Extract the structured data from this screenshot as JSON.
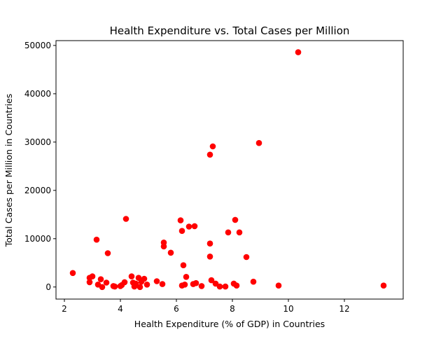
{
  "chart_data": {
    "type": "scatter",
    "title": "Health Expenditure vs. Total Cases per Million",
    "xlabel": "Health Expenditure (% of GDP) in Countries",
    "ylabel": "Total Cases per Million in Countries",
    "xlim": [
      1.7,
      14.1
    ],
    "ylim": [
      -2500,
      51000
    ],
    "xticks": [
      2,
      4,
      6,
      8,
      10,
      12
    ],
    "yticks": [
      0,
      10000,
      20000,
      30000,
      40000,
      50000
    ],
    "grid": false,
    "legend": "none",
    "marker_color": "#ff0000",
    "points": [
      [
        2.3,
        2900
      ],
      [
        2.9,
        1900
      ],
      [
        3.0,
        2200
      ],
      [
        2.9,
        1000
      ],
      [
        3.15,
        9800
      ],
      [
        3.2,
        500
      ],
      [
        3.3,
        1600
      ],
      [
        3.35,
        0
      ],
      [
        3.5,
        900
      ],
      [
        3.55,
        7000
      ],
      [
        3.75,
        200
      ],
      [
        3.8,
        100
      ],
      [
        4.0,
        200
      ],
      [
        4.05,
        400
      ],
      [
        4.15,
        1000
      ],
      [
        4.2,
        14100
      ],
      [
        4.4,
        2200
      ],
      [
        4.45,
        900
      ],
      [
        4.5,
        100
      ],
      [
        4.55,
        700
      ],
      [
        4.65,
        1900
      ],
      [
        4.7,
        0
      ],
      [
        4.75,
        1100
      ],
      [
        4.85,
        1700
      ],
      [
        4.95,
        500
      ],
      [
        5.3,
        1200
      ],
      [
        5.5,
        600
      ],
      [
        5.55,
        9200
      ],
      [
        5.55,
        8400
      ],
      [
        5.8,
        7100
      ],
      [
        6.15,
        13800
      ],
      [
        6.2,
        11600
      ],
      [
        6.2,
        300
      ],
      [
        6.25,
        4500
      ],
      [
        6.3,
        500
      ],
      [
        6.35,
        2100
      ],
      [
        6.45,
        12500
      ],
      [
        6.6,
        600
      ],
      [
        6.65,
        12600
      ],
      [
        6.7,
        800
      ],
      [
        6.9,
        200
      ],
      [
        7.2,
        27400
      ],
      [
        7.2,
        9000
      ],
      [
        7.2,
        6300
      ],
      [
        7.25,
        1400
      ],
      [
        7.3,
        29100
      ],
      [
        7.4,
        700
      ],
      [
        7.55,
        100
      ],
      [
        7.75,
        100
      ],
      [
        7.85,
        11300
      ],
      [
        8.05,
        700
      ],
      [
        8.1,
        13900
      ],
      [
        8.15,
        300
      ],
      [
        8.25,
        11300
      ],
      [
        8.5,
        6200
      ],
      [
        8.75,
        1100
      ],
      [
        8.95,
        29800
      ],
      [
        9.65,
        300
      ],
      [
        10.35,
        48600
      ],
      [
        13.4,
        300
      ]
    ]
  }
}
